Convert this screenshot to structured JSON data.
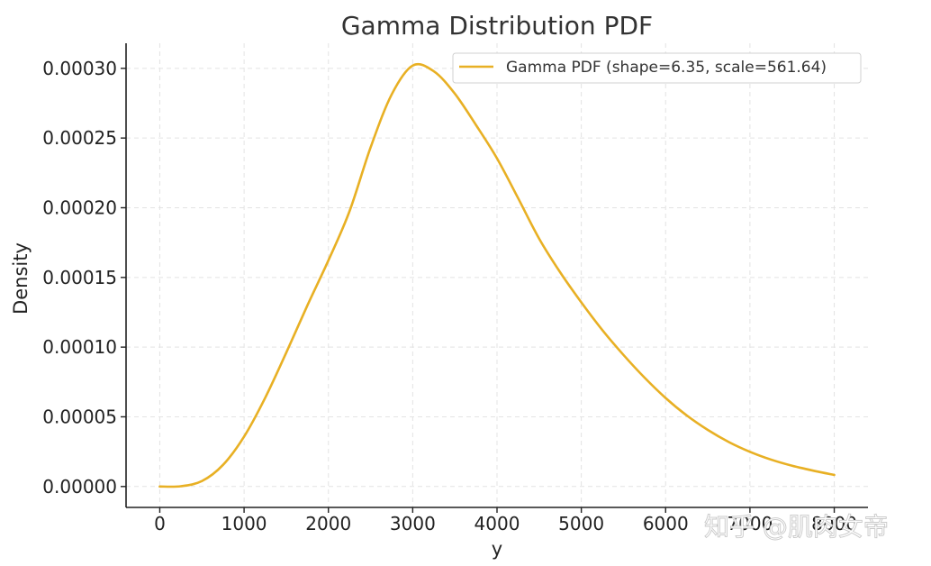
{
  "chart_data": {
    "type": "line",
    "title": "Gamma Distribution PDF",
    "xlabel": "y",
    "ylabel": "Density",
    "xlim": [
      -400,
      8400
    ],
    "ylim": [
      -1.5e-05,
      0.000318
    ],
    "xticks": [
      0,
      1000,
      2000,
      3000,
      4000,
      5000,
      6000,
      7000,
      8000
    ],
    "xtick_labels": [
      "0",
      "1000",
      "2000",
      "3000",
      "4000",
      "5000",
      "6000",
      "7000",
      "8000"
    ],
    "yticks": [
      0,
      5e-05,
      0.0001,
      0.00015,
      0.0002,
      0.00025,
      0.0003
    ],
    "ytick_labels": [
      "0.00000",
      "0.00005",
      "0.00010",
      "0.00015",
      "0.00020",
      "0.00025",
      "0.00030"
    ],
    "grid": true,
    "legend_position": "top-right",
    "series": [
      {
        "name": "Gamma PDF (shape=6.35, scale=561.64)",
        "color": "#E8B024",
        "x": [
          0,
          250,
          500,
          750,
          1000,
          1250,
          1500,
          1750,
          2000,
          2250,
          2500,
          2750,
          3000,
          3250,
          3500,
          3750,
          4000,
          4250,
          4500,
          4750,
          5000,
          5250,
          5500,
          5750,
          6000,
          6250,
          6500,
          6750,
          7000,
          7250,
          7500,
          7750,
          8000
        ],
        "y": [
          0.0,
          2e-07,
          3.9e-06,
          1.55e-05,
          3.58e-05,
          6.36e-05,
          9.6e-05,
          0.0001298,
          0.0001622,
          0.0001974,
          0.0002432,
          0.0002812,
          0.000302,
          0.0002979,
          0.0002818,
          0.0002594,
          0.0002354,
          0.0002069,
          0.0001778,
          0.0001536,
          0.0001321,
          0.0001122,
          9.44e-05,
          7.81e-05,
          6.35e-05,
          5.1e-05,
          4.06e-05,
          3.19e-05,
          2.49e-05,
          1.93e-05,
          1.49e-05,
          1.14e-05,
          8.3e-06
        ]
      }
    ]
  },
  "watermark": "知乎 @肌肉女帝"
}
